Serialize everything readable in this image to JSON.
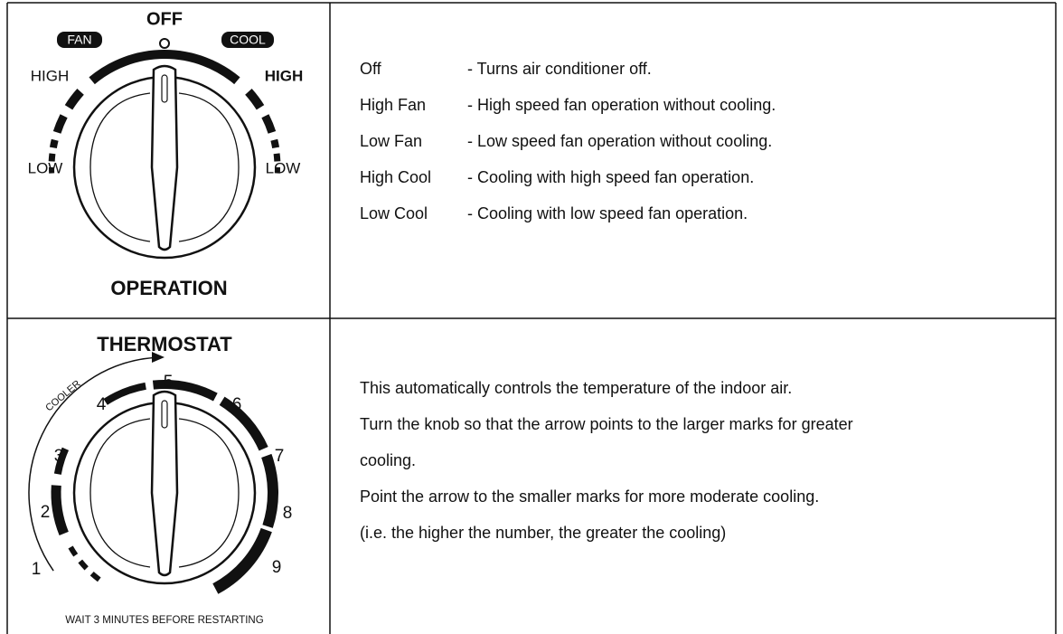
{
  "operation": {
    "labels": {
      "off": "OFF",
      "fan": "FAN",
      "cool": "COOL",
      "high_left": "HIGH",
      "high_right": "HIGH",
      "low_left": "LOW",
      "low_right": "LOW"
    },
    "title": "OPERATION",
    "modes": [
      {
        "name": "Off",
        "desc": "- Turns air conditioner off."
      },
      {
        "name": "High Fan",
        "desc": "- High speed fan operation without cooling."
      },
      {
        "name": "Low Fan",
        "desc": "- Low speed fan operation without cooling."
      },
      {
        "name": "High Cool",
        "desc": "- Cooling with high speed fan operation."
      },
      {
        "name": "Low Cool",
        "desc": "- Cooling with low speed fan operation."
      }
    ]
  },
  "thermostat": {
    "title": "THERMOSTAT",
    "cooler": "COOLER",
    "numbers": [
      1,
      2,
      3,
      4,
      5,
      6,
      7,
      8,
      9
    ],
    "note": "WAIT 3 MINUTES BEFORE RESTARTING",
    "lines": [
      "This automatically controls the temperature of the indoor air.",
      "Turn the knob so that the arrow points to the larger marks for greater",
      "cooling.",
      "Point the arrow to the smaller marks for more moderate cooling.",
      "(i.e. the higher the number, the greater the cooling)"
    ]
  }
}
